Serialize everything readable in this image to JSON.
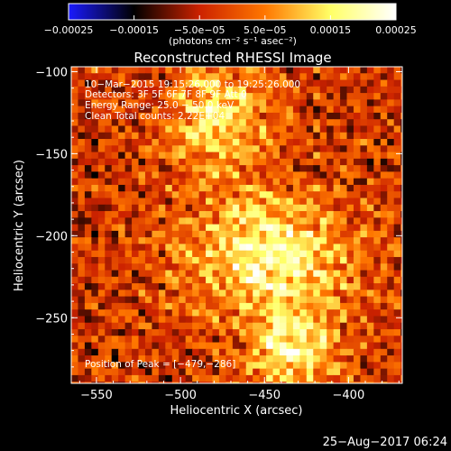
{
  "chart_data": {
    "type": "heatmap",
    "title": "Reconstructed RHESSI Image",
    "xlabel": "Heliocentric X (arcsec)",
    "ylabel": "Heliocentric Y (arcsec)",
    "xlim": [
      -565,
      -368
    ],
    "ylim": [
      -290,
      -97
    ],
    "xticks": [
      -550,
      -500,
      -450,
      -400
    ],
    "yticks": [
      -100,
      -150,
      -200,
      -250
    ],
    "xtick_labels": [
      "−550",
      "−500",
      "−450",
      "−400"
    ],
    "ytick_labels": [
      "−100",
      "−150",
      "−200",
      "−250"
    ],
    "colorbar": {
      "range": [
        -0.00025,
        0.00025
      ],
      "ticks": [
        -0.00025,
        -0.00015,
        -5e-05,
        5e-05,
        0.00015,
        0.00025
      ],
      "tick_labels": [
        "−0.00025",
        "−0.00015",
        "−5.0e−05",
        "5.0e−05",
        "0.00015",
        "0.00025"
      ],
      "unit_label": "(photons cm⁻² s⁻¹ asec⁻²)",
      "colormap": [
        "#1a1aff",
        "#000000",
        "#cc2200",
        "#ff7700",
        "#ffff66",
        "#ffffff"
      ]
    },
    "annotations": {
      "time_range": "10−Mar−2015 19:15:26.000 to 19:25:26.000",
      "detectors": "Detectors: 3F 5F 6F 7F 8F 9F  Att 0",
      "energy_range": "Energy Range: 25.0 − 50.0 keV",
      "method": "Clean     Total counts: 2.22E+04",
      "peak": "Position of Peak = [−479,−286]"
    },
    "peak": [
      -479,
      -286
    ],
    "emission_sources": [
      {
        "x": -448,
        "y": -212,
        "sx": 34,
        "sy": 26,
        "amp": 0.00022
      },
      {
        "x": -478,
        "y": -128,
        "sx": 22,
        "sy": 24,
        "amp": 0.00017
      },
      {
        "x": -432,
        "y": -270,
        "sx": 18,
        "sy": 18,
        "amp": 0.0002
      }
    ],
    "grid": false
  },
  "footer": {
    "timestamp": "25−Aug−2017 06:24"
  }
}
